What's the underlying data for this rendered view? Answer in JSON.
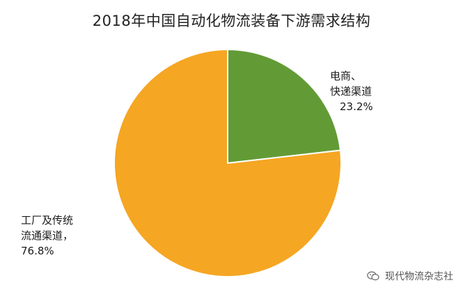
{
  "chart_data": {
    "type": "pie",
    "title": "2018年中国自动化物流装备下游需求结构",
    "slices": [
      {
        "label_lines": [
          "电商、",
          "快递渠道"
        ],
        "value_label": "23.2%",
        "value": 23.2,
        "color": "#629b36"
      },
      {
        "label_lines": [
          "工厂及传统",
          "流通渠道，"
        ],
        "value_label": "76.8%",
        "value": 76.8,
        "color": "#f5a623"
      }
    ]
  },
  "watermark": {
    "text": "现代物流杂志社",
    "icon": "wechat-icon"
  }
}
